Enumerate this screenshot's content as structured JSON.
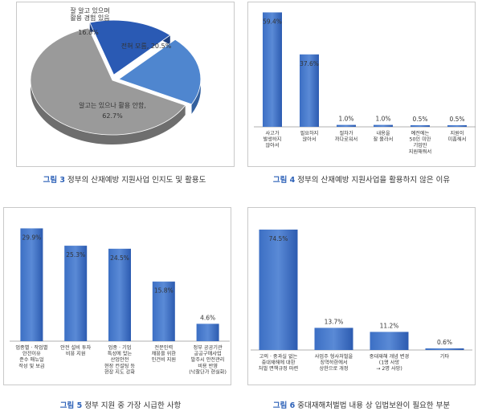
{
  "chart_data": [
    {
      "type": "pie",
      "caption_label": "그림 3",
      "caption_text": "정부의 산재예방 지원사업 인지도 및 활용도",
      "slices": [
        {
          "label": "잘 알고 있으며 활용 경험 있음",
          "label_lines": [
            "잘 알고 있으며",
            "활용 경험 있음"
          ],
          "value": 16.8,
          "value_text": "16.8%",
          "color": "#2a5ab4"
        },
        {
          "label": "전혀 모름",
          "value": 20.5,
          "value_text": "전혀 모름, 20.5%",
          "color": "#4f86cf"
        },
        {
          "label": "알고는 있으나 활용 안함",
          "value": 62.7,
          "value_text": "62.7%",
          "color": "#9a9a9a"
        }
      ]
    },
    {
      "type": "bar",
      "caption_label": "그림 4",
      "caption_text": "정부의 산재예방 지원사업을 활용하지 않은 이유",
      "categories": [
        "사고가 발생하지 않아서",
        "필요하지 않아서",
        "절차가 까다로워서",
        "내용을 잘 몰라서",
        "예전에는 50인 미만 기업만 지원해줘서",
        "지원이 미흡해서"
      ],
      "category_lines": [
        [
          "사고가",
          "발생하지",
          "않아서"
        ],
        [
          "필요하지",
          "않아서"
        ],
        [
          "절차가",
          "까다로워서"
        ],
        [
          "내용을",
          "잘 몰라서"
        ],
        [
          "예전에는",
          "50인 미만",
          "기업만",
          "지원해줘서"
        ],
        [
          "지원이",
          "미흡해서"
        ]
      ],
      "values": [
        59.4,
        37.6,
        1.0,
        1.0,
        0.5,
        0.5
      ],
      "value_labels": [
        "59.4%",
        "37.6%",
        "1.0%",
        "1.0%",
        "0.5%",
        "0.5%"
      ],
      "ylim": [
        0,
        60
      ]
    },
    {
      "type": "bar",
      "caption_label": "그림 5",
      "caption_text": "정부 지원 중 가장 시급한 사항",
      "categories": [
        "업종별·작업별 안전이유 준수 매뉴얼 작성 및 보급",
        "안전 설비 투자 비용 지원",
        "업종·기업 특성에 맞는 산업안전 현장 컨설팅 등 현장 지도 강화",
        "전문인력 채용을 위한 인건비 지원",
        "정부 공공기관 공공구매사업 발주시 안전관리 비용 반영 (낙찰단가 현실화)"
      ],
      "category_lines": [
        [
          "업종별 · 작업별",
          "안전이유",
          "준수 매뉴얼",
          "작성 및 보급"
        ],
        [
          "안전 설비 투자",
          "비용 지원"
        ],
        [
          "업종 · 기업",
          "특성에 맞는",
          "산업안전",
          "현장 컨설팅 등",
          "현장 지도 강화"
        ],
        [
          "전문인력",
          "채용을 위한",
          "인건비 지원"
        ],
        [
          "정부 공공기관",
          "공공구매사업",
          "발주시 안전관리",
          "비용 반영",
          "(낙찰단가 현실화)"
        ]
      ],
      "values": [
        29.9,
        25.3,
        24.5,
        15.8,
        4.6
      ],
      "value_labels": [
        "29.9%",
        "25.3%",
        "24.5%",
        "15.8%",
        "4.6%"
      ],
      "ylim": [
        0,
        30
      ]
    },
    {
      "type": "bar",
      "caption_label": "그림 6",
      "caption_text": "중대재해처벌법 내용 상 입법보완이 필요한 부분",
      "categories": [
        "고의 · 중과실 없는 중대재해에 대한 처벌 면책규정 마련",
        "사업주 형사처벌을 징역하한에서 상한으로 개정",
        "중대재해 개념 변경 (1명 사망 → 2명 사망)",
        "기타"
      ],
      "category_lines": [
        [
          "고의 · 중과실 없는",
          "중대재해에 대한",
          "처벌 면책규정 마련"
        ],
        [
          "사업주 형사처벌을",
          "징역하한에서",
          "상한으로 개정"
        ],
        [
          "중대재해 개념 변경",
          "(1명 사망",
          "→ 2명 사망)"
        ],
        [
          "기타"
        ]
      ],
      "values": [
        74.5,
        13.7,
        11.2,
        0.6
      ],
      "value_labels": [
        "74.5%",
        "13.7%",
        "11.2%",
        "0.6%"
      ],
      "ylim": [
        0,
        75
      ]
    }
  ]
}
